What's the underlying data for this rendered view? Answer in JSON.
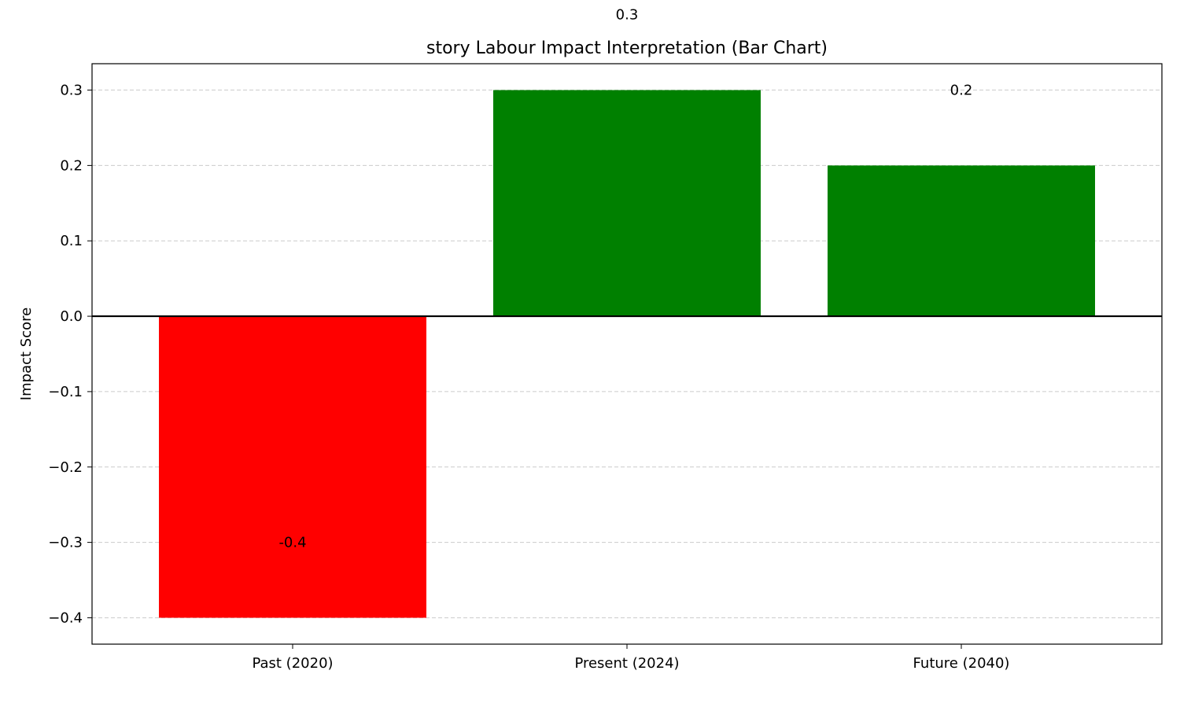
{
  "chart_data": {
    "type": "bar",
    "title": "story Labour Impact Interpretation (Bar Chart)",
    "xlabel": "",
    "ylabel": "Impact Score",
    "categories": [
      "Past (2020)",
      "Present (2024)",
      "Future (2040)"
    ],
    "values": [
      -0.4,
      0.3,
      0.2
    ],
    "data_labels": [
      "-0.4",
      "0.3",
      "0.2"
    ],
    "bar_colors": [
      "#ff0000",
      "#008000",
      "#008000"
    ],
    "ylim": [
      -0.435,
      0.335
    ],
    "yticks": [
      0.3,
      0.2,
      0.1,
      0.0,
      -0.1,
      -0.2,
      -0.3,
      -0.4
    ],
    "ytick_labels": [
      "0.3",
      "0.2",
      "0.1",
      "0.0",
      "−0.1",
      "−0.2",
      "−0.3",
      "−0.4"
    ],
    "grid": "y-dashed",
    "zero_line": true,
    "legend": "none"
  }
}
